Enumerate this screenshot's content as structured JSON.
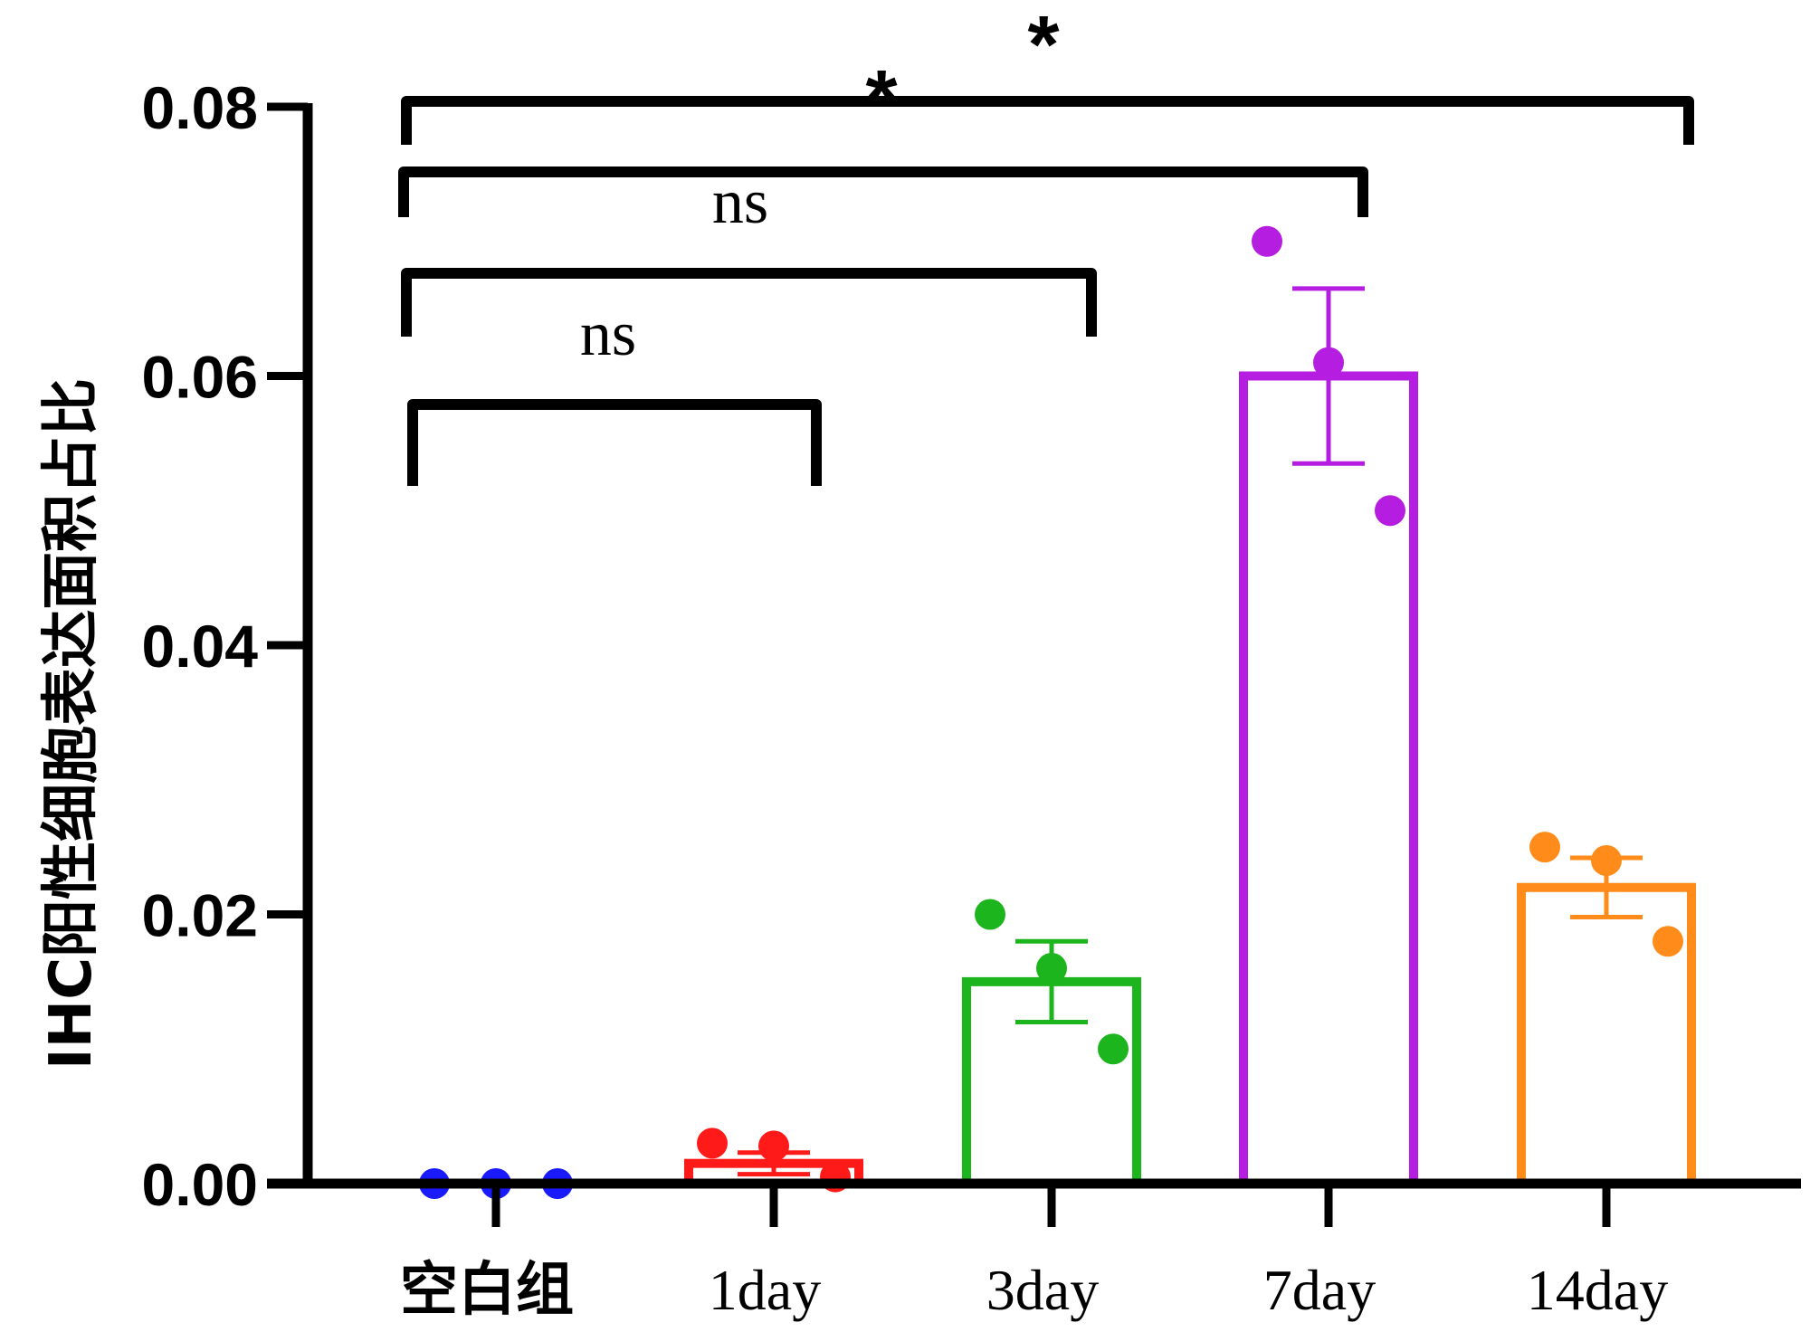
{
  "chart_data": {
    "type": "bar",
    "title": "",
    "xlabel": "",
    "ylabel": "IHC阳性细胞表达面积占比",
    "ylim": [
      0,
      0.08
    ],
    "yticks": [
      "0.00",
      "0.02",
      "0.04",
      "0.06",
      "0.08"
    ],
    "categories": [
      "空白组",
      "1day",
      "3day",
      "7day",
      "14day"
    ],
    "colors": [
      "#1a1aff",
      "#ff1a1a",
      "#1db51d",
      "#b51ee0",
      "#ff8c1a"
    ],
    "means": [
      0.0,
      0.0015,
      0.015,
      0.06,
      0.022
    ],
    "sem": [
      0.0,
      0.0008,
      0.003,
      0.0065,
      0.0022
    ],
    "points": [
      [
        0.0,
        0.0,
        0.0
      ],
      [
        0.003,
        0.0028,
        0.0005
      ],
      [
        0.02,
        0.016,
        0.01
      ],
      [
        0.07,
        0.061,
        0.05
      ],
      [
        0.025,
        0.024,
        0.018
      ]
    ],
    "significance": [
      {
        "from": "空白组",
        "to": "1day",
        "label": "ns"
      },
      {
        "from": "空白组",
        "to": "3day",
        "label": "ns"
      },
      {
        "from": "空白组",
        "to": "7day",
        "label": "*"
      },
      {
        "from": "空白组",
        "to": "14day",
        "label": "*"
      }
    ]
  }
}
